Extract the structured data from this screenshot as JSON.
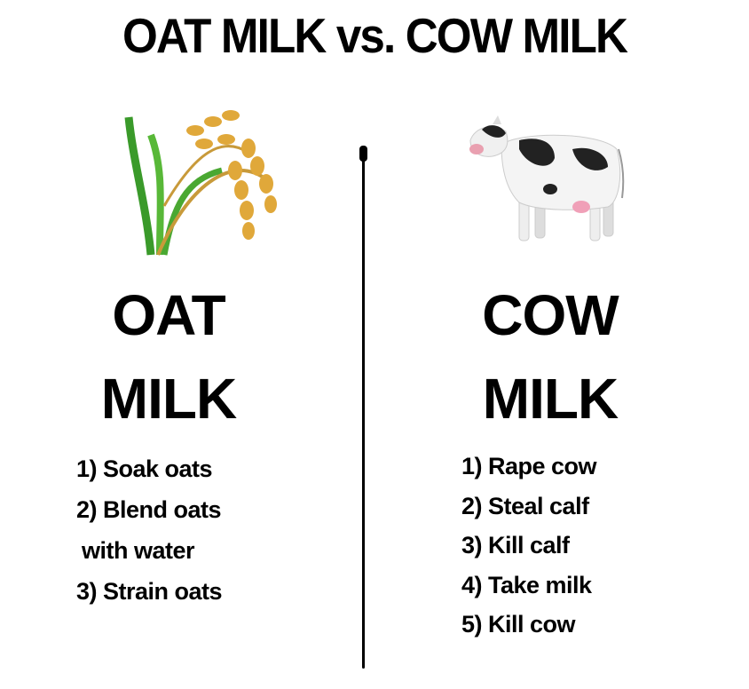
{
  "title": "OAT MILK vs. COW MILK",
  "left": {
    "icon": "rice-sheaf-icon",
    "heading_line1": "OAT",
    "heading_line2": "MILK",
    "steps": [
      "1) Soak oats",
      "2) Blend oats",
      "with water",
      "3) Strain oats"
    ]
  },
  "right": {
    "icon": "cow-icon",
    "heading_line1": "COW",
    "heading_line2": "MILK",
    "steps": [
      "1) Rape cow",
      "2) Steal calf",
      "3) Kill calf",
      "4) Take milk",
      "5) Kill cow"
    ]
  }
}
